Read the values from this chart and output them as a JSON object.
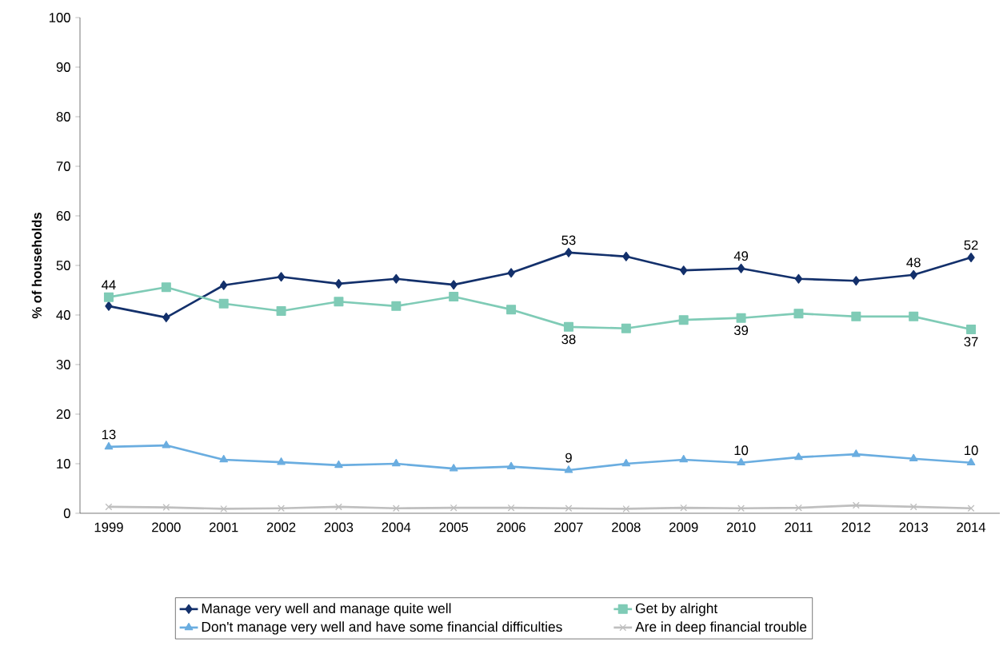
{
  "chart_data": {
    "type": "line",
    "ylabel": "% of households",
    "categories": [
      "1999",
      "2000",
      "2001",
      "2002",
      "2003",
      "2004",
      "2005",
      "2006",
      "2007",
      "2008",
      "2009",
      "2010",
      "2011",
      "2012",
      "2013",
      "2014"
    ],
    "ylim": [
      0,
      100
    ],
    "yticks": [
      0,
      10,
      20,
      30,
      40,
      50,
      60,
      70,
      80,
      90,
      100
    ],
    "grid": false,
    "legend": "bottom",
    "line_style": "solid",
    "series": [
      {
        "name": "Manage very well and manage quite well",
        "color": "#13306b",
        "marker": "diamond",
        "values": [
          41.8,
          39.5,
          46.0,
          47.7,
          46.3,
          47.3,
          46.1,
          48.5,
          52.6,
          51.8,
          49.0,
          49.4,
          47.3,
          46.9,
          48.1,
          51.6
        ],
        "value_labels": [
          null,
          null,
          null,
          null,
          null,
          null,
          null,
          null,
          "53",
          null,
          null,
          "49",
          null,
          null,
          "48",
          "52"
        ]
      },
      {
        "name": "Get by alright",
        "color": "#7fcbb6",
        "marker": "square",
        "values": [
          43.6,
          45.6,
          42.3,
          40.8,
          42.7,
          41.8,
          43.7,
          41.1,
          37.6,
          37.3,
          39.0,
          39.4,
          40.3,
          39.7,
          39.7,
          37.1
        ],
        "value_labels": [
          "44",
          null,
          null,
          null,
          null,
          null,
          null,
          null,
          "38",
          null,
          null,
          "39",
          null,
          null,
          null,
          "37"
        ]
      },
      {
        "name": "Don't manage very well and have some financial difficulties",
        "color": "#6aade0",
        "marker": "triangle",
        "values": [
          13.4,
          13.7,
          10.8,
          10.3,
          9.7,
          10.0,
          9.0,
          9.4,
          8.7,
          10.0,
          10.8,
          10.2,
          11.3,
          11.9,
          11.0,
          10.2
        ],
        "value_labels": [
          "13",
          null,
          null,
          null,
          null,
          null,
          null,
          null,
          "9",
          null,
          null,
          "10",
          null,
          null,
          null,
          "10"
        ]
      },
      {
        "name": "Are in deep financial trouble",
        "color": "#bfbfbf",
        "marker": "cross",
        "values": [
          1.3,
          1.2,
          0.9,
          1.0,
          1.3,
          1.0,
          1.1,
          1.1,
          1.0,
          0.9,
          1.1,
          1.0,
          1.1,
          1.6,
          1.3,
          1.0
        ]
      }
    ]
  }
}
